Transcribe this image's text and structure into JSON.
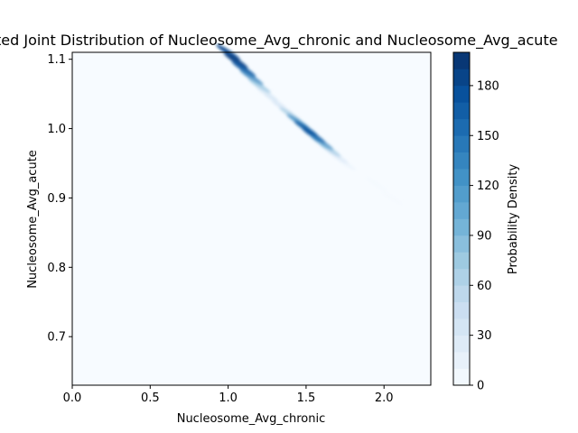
{
  "chart_data": {
    "type": "heatmap",
    "title": "Estimated Joint Distribution of Nucleosome_Avg_chronic and Nucleosome_Avg_acute",
    "xlabel": "Nucleosome_Avg_chronic",
    "ylabel": "Nucleosome_Avg_acute",
    "xlim": [
      0.0,
      2.3
    ],
    "ylim": [
      0.63,
      1.11
    ],
    "x_ticks": [
      0.0,
      0.5,
      1.0,
      1.5,
      2.0
    ],
    "x_tick_labels": [
      "0.0",
      "0.5",
      "1.0",
      "1.5",
      "2.0"
    ],
    "y_ticks": [
      0.7,
      0.8,
      0.9,
      1.0,
      1.1
    ],
    "y_tick_labels": [
      "0.7",
      "0.8",
      "0.9",
      "1.0",
      "1.1"
    ],
    "colormap": "Blues",
    "background_color": "#f7fbff",
    "colorbar": {
      "label": "Probability Density",
      "range": [
        0,
        200
      ],
      "levels": 20,
      "ticks": [
        0,
        30,
        60,
        90,
        120,
        150,
        180
      ],
      "tick_labels": [
        "0",
        "30",
        "60",
        "90",
        "120",
        "150",
        "180"
      ]
    },
    "ridge_points": [
      {
        "x": 1.0,
        "y": 1.11,
        "density": 180
      },
      {
        "x": 1.05,
        "y": 1.098,
        "density": 185
      },
      {
        "x": 1.1,
        "y": 1.086,
        "density": 170
      },
      {
        "x": 1.15,
        "y": 1.074,
        "density": 140
      },
      {
        "x": 1.2,
        "y": 1.062,
        "density": 90
      },
      {
        "x": 1.25,
        "y": 1.05,
        "density": 50
      },
      {
        "x": 1.3,
        "y": 1.04,
        "density": 35
      },
      {
        "x": 1.35,
        "y": 1.03,
        "density": 45
      },
      {
        "x": 1.4,
        "y": 1.02,
        "density": 80
      },
      {
        "x": 1.45,
        "y": 1.01,
        "density": 130
      },
      {
        "x": 1.5,
        "y": 1.0,
        "density": 165
      },
      {
        "x": 1.55,
        "y": 0.99,
        "density": 170
      },
      {
        "x": 1.6,
        "y": 0.98,
        "density": 140
      },
      {
        "x": 1.65,
        "y": 0.97,
        "density": 90
      },
      {
        "x": 1.7,
        "y": 0.96,
        "density": 45
      },
      {
        "x": 1.75,
        "y": 0.95,
        "density": 20
      },
      {
        "x": 1.95,
        "y": 0.92,
        "density": 8
      },
      {
        "x": 2.05,
        "y": 0.9,
        "density": 6
      }
    ]
  }
}
